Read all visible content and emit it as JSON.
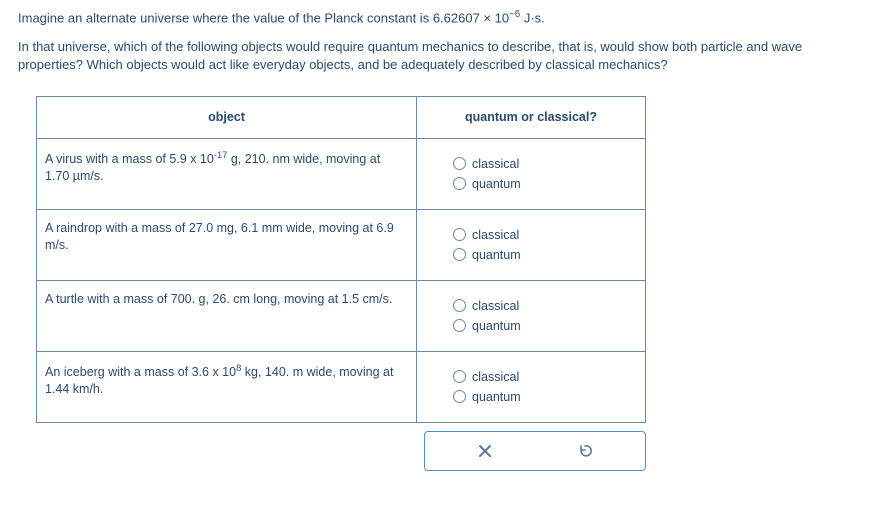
{
  "question": {
    "line1_pre": "Imagine an alternate universe where the value of the Planck constant is ",
    "planck_value": "6.62607 × 10",
    "planck_exp": "−6",
    "planck_unit": " J·s.",
    "line2": "In that universe, which of the following objects would require quantum mechanics to describe, that is, would show both particle and wave properties? Which objects would act like everyday objects, and be adequately described by classical mechanics?"
  },
  "headers": {
    "object": "object",
    "qc": "quantum or classical?"
  },
  "labels": {
    "classical": "classical",
    "quantum": "quantum"
  },
  "rows": [
    {
      "desc_html": "A virus with a mass of 5.9 x 10<sup>-17</sup> g, 210. nm wide, moving at 1.70 µm/s."
    },
    {
      "desc_html": "A raindrop with a mass of 27.0 mg, 6.1 mm wide, moving at 6.9 m/s."
    },
    {
      "desc_html": "A turtle with a mass of 700. g, 26. cm long, moving at 1.5 cm/s."
    },
    {
      "desc_html": "An iceberg with a mass of 3.6 x 10<sup>8</sup> kg, 140. m wide, moving at 1.44 km/h."
    }
  ],
  "colors": {
    "text": "#2a4a6b",
    "border": "#6b8aab",
    "toolbar_border": "#4a90d9"
  }
}
